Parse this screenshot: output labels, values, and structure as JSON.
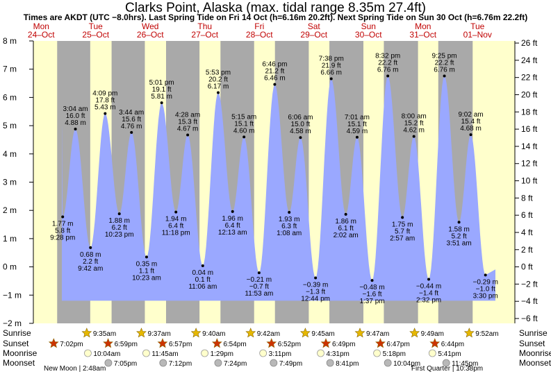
{
  "chart_data": {
    "type": "area",
    "title": "Clarks Point, Alaska (max. tidal range 8.35m 27.4ft)",
    "subtitle": "Times are AKDT (UTC −8.0hrs). Last Spring Tide on Fri 14 Oct (h=6.16m 20.2ft). Next Spring Tide on Sun 30 Oct (h=6.76m 22.2ft)",
    "y_left": {
      "unit": "m",
      "min": -2,
      "max": 8,
      "ticks": [
        "−2 m",
        "−1 m",
        "0 m",
        "1 m",
        "2 m",
        "3 m",
        "4 m",
        "5 m",
        "6 m",
        "7 m",
        "8 m"
      ]
    },
    "y_right": {
      "unit": "ft",
      "min": -6,
      "max": 26,
      "ticks": [
        "−6 ft",
        "−4 ft",
        "−2 ft",
        "0 ft",
        "2 ft",
        "4 ft",
        "6 ft",
        "8 ft",
        "10 ft",
        "12 ft",
        "14 ft",
        "16 ft",
        "18 ft",
        "20 ft",
        "22 ft",
        "24 ft",
        "26 ft"
      ]
    },
    "days": [
      {
        "dow": "Mon",
        "date": "24–Oct"
      },
      {
        "dow": "Tue",
        "date": "25–Oct"
      },
      {
        "dow": "Wed",
        "date": "26–Oct"
      },
      {
        "dow": "Thu",
        "date": "27–Oct"
      },
      {
        "dow": "Fri",
        "date": "28–Oct"
      },
      {
        "dow": "Sat",
        "date": "29–Oct"
      },
      {
        "dow": "Sun",
        "date": "30–Oct"
      },
      {
        "dow": "Mon",
        "date": "31–Oct"
      },
      {
        "dow": "Tue",
        "date": "01–Nov"
      }
    ],
    "tides": [
      {
        "type": "low",
        "day": 0,
        "hour": 21.467,
        "m": 1.77,
        "m_label": "1.77 m",
        "ft_label": "5.8 ft",
        "time": "9:28 pm"
      },
      {
        "type": "high",
        "day": 1,
        "hour": 3.067,
        "m": 4.88,
        "m_label": "4.88 m",
        "ft_label": "16.0 ft",
        "time": "3:04 am"
      },
      {
        "type": "low",
        "day": 1,
        "hour": 9.7,
        "m": 0.68,
        "m_label": "0.68 m",
        "ft_label": "2.2 ft",
        "time": "9:42 am"
      },
      {
        "type": "high",
        "day": 1,
        "hour": 16.15,
        "m": 5.43,
        "m_label": "5.43 m",
        "ft_label": "17.8 ft",
        "time": "4:09 pm"
      },
      {
        "type": "low",
        "day": 1,
        "hour": 22.383,
        "m": 1.88,
        "m_label": "1.88 m",
        "ft_label": "6.2 ft",
        "time": "10:23 pm"
      },
      {
        "type": "high",
        "day": 2,
        "hour": 3.733,
        "m": 4.76,
        "m_label": "4.76 m",
        "ft_label": "15.6 ft",
        "time": "3:44 am"
      },
      {
        "type": "low",
        "day": 2,
        "hour": 10.383,
        "m": 0.35,
        "m_label": "0.35 m",
        "ft_label": "1.1 ft",
        "time": "10:23 am"
      },
      {
        "type": "high",
        "day": 2,
        "hour": 17.017,
        "m": 5.81,
        "m_label": "5.81 m",
        "ft_label": "19.1 ft",
        "time": "5:01 pm"
      },
      {
        "type": "low",
        "day": 2,
        "hour": 23.3,
        "m": 1.94,
        "m_label": "1.94 m",
        "ft_label": "6.4 ft",
        "time": "11:18 pm"
      },
      {
        "type": "high",
        "day": 3,
        "hour": 4.467,
        "m": 4.67,
        "m_label": "4.67 m",
        "ft_label": "15.3 ft",
        "time": "4:28 am"
      },
      {
        "type": "low",
        "day": 3,
        "hour": 11.1,
        "m": 0.04,
        "m_label": "0.04 m",
        "ft_label": "0.1 ft",
        "time": "11:06 am"
      },
      {
        "type": "high",
        "day": 3,
        "hour": 17.883,
        "m": 6.17,
        "m_label": "6.17 m",
        "ft_label": "20.2 ft",
        "time": "5:53 pm"
      },
      {
        "type": "low",
        "day": 4,
        "hour": 0.217,
        "m": 1.96,
        "m_label": "1.96 m",
        "ft_label": "6.4 ft",
        "time": "12:13 am"
      },
      {
        "type": "high",
        "day": 4,
        "hour": 5.25,
        "m": 4.6,
        "m_label": "4.60 m",
        "ft_label": "15.1 ft",
        "time": "5:15 am"
      },
      {
        "type": "low",
        "day": 4,
        "hour": 11.883,
        "m": -0.21,
        "m_label": "−0.21 m",
        "ft_label": "−0.7 ft",
        "time": "11:53 am"
      },
      {
        "type": "high",
        "day": 4,
        "hour": 18.767,
        "m": 6.46,
        "m_label": "6.46 m",
        "ft_label": "21.2 ft",
        "time": "6:46 pm"
      },
      {
        "type": "low",
        "day": 5,
        "hour": 1.133,
        "m": 1.93,
        "m_label": "1.93 m",
        "ft_label": "6.3 ft",
        "time": "1:08 am"
      },
      {
        "type": "high",
        "day": 5,
        "hour": 6.1,
        "m": 4.58,
        "m_label": "4.58 m",
        "ft_label": "15.0 ft",
        "time": "6:06 am"
      },
      {
        "type": "low",
        "day": 5,
        "hour": 12.733,
        "m": -0.39,
        "m_label": "−0.39 m",
        "ft_label": "−1.3 ft",
        "time": "12:44 pm"
      },
      {
        "type": "high",
        "day": 5,
        "hour": 19.633,
        "m": 6.66,
        "m_label": "6.66 m",
        "ft_label": "21.9 ft",
        "time": "7:38 pm"
      },
      {
        "type": "low",
        "day": 6,
        "hour": 2.033,
        "m": 1.86,
        "m_label": "1.86 m",
        "ft_label": "6.1 ft",
        "time": "2:02 am"
      },
      {
        "type": "high",
        "day": 6,
        "hour": 7.017,
        "m": 4.59,
        "m_label": "4.59 m",
        "ft_label": "15.1 ft",
        "time": "7:01 am"
      },
      {
        "type": "low",
        "day": 6,
        "hour": 13.617,
        "m": -0.48,
        "m_label": "−0.48 m",
        "ft_label": "−1.6 ft",
        "time": "1:37 pm"
      },
      {
        "type": "high",
        "day": 6,
        "hour": 20.533,
        "m": 6.76,
        "m_label": "6.76 m",
        "ft_label": "22.2 ft",
        "time": "8:32 pm"
      },
      {
        "type": "low",
        "day": 7,
        "hour": 2.95,
        "m": 1.75,
        "m_label": "1.75 m",
        "ft_label": "5.7 ft",
        "time": "2:57 am"
      },
      {
        "type": "high",
        "day": 7,
        "hour": 8.0,
        "m": 4.62,
        "m_label": "4.62 m",
        "ft_label": "15.2 ft",
        "time": "8:00 am"
      },
      {
        "type": "low",
        "day": 7,
        "hour": 14.533,
        "m": -0.44,
        "m_label": "−0.44 m",
        "ft_label": "−1.4 ft",
        "time": "2:32 pm"
      },
      {
        "type": "high",
        "day": 7,
        "hour": 21.417,
        "m": 6.76,
        "m_label": "6.76 m",
        "ft_label": "22.2 ft",
        "time": "9:25 pm"
      },
      {
        "type": "low",
        "day": 8,
        "hour": 3.85,
        "m": 1.58,
        "m_label": "1.58 m",
        "ft_label": "5.2 ft",
        "time": "3:51 am"
      },
      {
        "type": "high",
        "day": 8,
        "hour": 9.033,
        "m": 4.68,
        "m_label": "4.68 m",
        "ft_label": "15.4 ft",
        "time": "9:02 am"
      },
      {
        "type": "low",
        "day": 8,
        "hour": 15.5,
        "m": -0.29,
        "m_label": "−0.29 m",
        "ft_label": "−1.0 ft",
        "time": "3:30 pm"
      }
    ],
    "sun": [
      {
        "day": 0,
        "sunrise": null,
        "sunset": "7:02pm",
        "sunrise_h": null,
        "sunset_h": 19.033
      },
      {
        "day": 1,
        "sunrise": "9:35am",
        "sunset": "6:59pm",
        "sunrise_h": 9.583,
        "sunset_h": 18.983
      },
      {
        "day": 2,
        "sunrise": "9:37am",
        "sunset": "6:57pm",
        "sunrise_h": 9.617,
        "sunset_h": 18.95
      },
      {
        "day": 3,
        "sunrise": "9:40am",
        "sunset": "6:54pm",
        "sunrise_h": 9.667,
        "sunset_h": 18.9
      },
      {
        "day": 4,
        "sunrise": "9:42am",
        "sunset": "6:52pm",
        "sunrise_h": 9.7,
        "sunset_h": 18.867
      },
      {
        "day": 5,
        "sunrise": "9:45am",
        "sunset": "6:49pm",
        "sunrise_h": 9.75,
        "sunset_h": 18.817
      },
      {
        "day": 6,
        "sunrise": "9:47am",
        "sunset": "6:47pm",
        "sunrise_h": 9.783,
        "sunset_h": 18.783
      },
      {
        "day": 7,
        "sunrise": "9:49am",
        "sunset": "6:44pm",
        "sunrise_h": 9.817,
        "sunset_h": 18.733
      },
      {
        "day": 8,
        "sunrise": "9:52am",
        "sunset": null,
        "sunrise_h": 9.867,
        "sunset_h": null
      }
    ],
    "moonrise": [
      {
        "day": 1,
        "time": "10:04am",
        "h": 10.067
      },
      {
        "day": 2,
        "time": "11:45am",
        "h": 11.75
      },
      {
        "day": 3,
        "time": "1:29pm",
        "h": 13.483
      },
      {
        "day": 4,
        "time": "3:11pm",
        "h": 15.183
      },
      {
        "day": 5,
        "time": "4:31pm",
        "h": 16.517
      },
      {
        "day": 6,
        "time": "5:18pm",
        "h": 17.3
      },
      {
        "day": 7,
        "time": "5:41pm",
        "h": 17.683
      }
    ],
    "moonset": [
      {
        "day": 1,
        "time": "7:05pm",
        "h": 19.083
      },
      {
        "day": 2,
        "time": "7:12pm",
        "h": 19.2
      },
      {
        "day": 3,
        "time": "7:24pm",
        "h": 19.4
      },
      {
        "day": 4,
        "time": "7:49pm",
        "h": 19.817
      },
      {
        "day": 5,
        "time": "8:41pm",
        "h": 20.683
      },
      {
        "day": 6,
        "time": "10:04pm",
        "h": 22.067
      },
      {
        "day": 7,
        "time": "11:45pm",
        "h": 23.75
      }
    ],
    "moon_phases": [
      {
        "label": "New Moon | 2:48am",
        "day": 1,
        "h": 2.8
      },
      {
        "label": "First Quarter | 10:38pm",
        "day": 7,
        "h": 22.633
      }
    ],
    "row_labels": {
      "sunrise": "Sunrise",
      "sunset": "Sunset",
      "moonrise": "Moonrise",
      "moonset": "Moonset"
    },
    "colors": {
      "day": "#ffffcc",
      "night": "#a9a9a9",
      "water": "#9aa8ff",
      "day_label": "#c00000",
      "sun_icon": "#e6b800",
      "sunset_icon": "#cc3300",
      "moonrise_icon": "#ffffcc",
      "moonset_icon": "#b8b8b8"
    }
  }
}
